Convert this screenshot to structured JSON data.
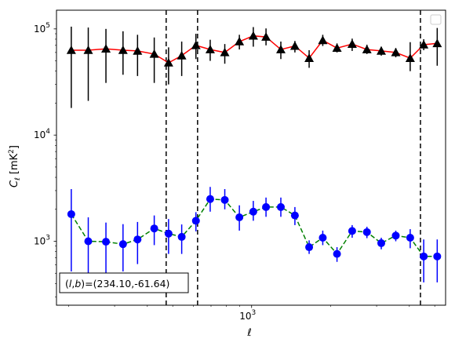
{
  "chart_data": {
    "type": "scatter",
    "x_scale": "log",
    "y_scale": "log",
    "xlabel": "ℓ",
    "ylabel": "C_ℓ  [mK²]",
    "xlim": [
      180,
      5500
    ],
    "ylim": [
      250,
      150000
    ],
    "x_tick_labels": [
      {
        "value": 1000,
        "base": "10",
        "exp": "3"
      }
    ],
    "y_tick_labels": [
      {
        "value": 1000,
        "base": "10",
        "exp": "3"
      },
      {
        "value": 10000,
        "base": "10",
        "exp": "4"
      },
      {
        "value": 100000,
        "base": "10",
        "exp": "5"
      }
    ],
    "grid": false,
    "legend": "top-right (empty)",
    "vertical_lines_x": [
      472,
      622,
      4410
    ],
    "annotation": {
      "prefix": "(",
      "l_sym": "l",
      "sep": ",",
      "b_sym": "b",
      "suffix": ")=(234.10,-61.64)"
    },
    "series": [
      {
        "color": "#ff0000",
        "marker_color": "#000000",
        "marker": "triangle",
        "line_style": "solid",
        "errorbar_color": "#000000",
        "x": [
          205,
          238,
          278,
          323,
          367,
          425,
          482,
          541,
          613,
          695,
          790,
          898,
          1015,
          1135,
          1293,
          1463,
          1658,
          1869,
          2118,
          2420,
          2755,
          3125,
          3550,
          4030,
          4538,
          5110
        ],
        "y": [
          63000,
          63000,
          65000,
          63000,
          62000,
          58000,
          48000,
          56000,
          70000,
          64000,
          60000,
          76000,
          86000,
          84000,
          64000,
          69000,
          53000,
          78000,
          66000,
          72000,
          64000,
          62000,
          60000,
          53000,
          71000,
          73000
        ],
        "y_low": [
          18000,
          21000,
          31000,
          37000,
          36000,
          31000,
          30000,
          36000,
          52000,
          50000,
          47000,
          64000,
          68000,
          70000,
          52000,
          60000,
          43000,
          69000,
          60000,
          62000,
          58000,
          56000,
          54000,
          40000,
          63000,
          45000
        ],
        "y_high": [
          105000,
          103000,
          100000,
          95000,
          88000,
          83000,
          67000,
          76000,
          90000,
          79000,
          72000,
          88000,
          104000,
          101000,
          76000,
          77000,
          63000,
          88000,
          73000,
          81000,
          71000,
          68000,
          66000,
          75000,
          80000,
          102000
        ]
      },
      {
        "color": "#008000",
        "marker_color": "#0000ff",
        "marker": "circle",
        "line_style": "dashed",
        "errorbar_color": "#0000ff",
        "x": [
          205,
          238,
          278,
          323,
          367,
          425,
          482,
          541,
          613,
          695,
          790,
          898,
          1015,
          1135,
          1293,
          1463,
          1658,
          1869,
          2118,
          2420,
          2755,
          3125,
          3550,
          4030,
          4538,
          5110
        ],
        "y": [
          1800,
          1000,
          990,
          940,
          1040,
          1320,
          1180,
          1100,
          1560,
          2500,
          2450,
          1680,
          1900,
          2100,
          2100,
          1750,
          880,
          1080,
          760,
          1250,
          1220,
          960,
          1130,
          1080,
          720,
          720
        ],
        "y_low": [
          520,
          500,
          460,
          520,
          610,
          920,
          760,
          760,
          1240,
          1900,
          2000,
          1260,
          1560,
          1700,
          1700,
          1420,
          760,
          920,
          640,
          1080,
          1070,
          840,
          1000,
          860,
          410,
          410
        ],
        "y_high": [
          3100,
          1680,
          1500,
          1450,
          1520,
          1750,
          1620,
          1440,
          1880,
          3250,
          3100,
          2180,
          2400,
          2580,
          2580,
          2100,
          1020,
          1260,
          880,
          1420,
          1370,
          1080,
          1260,
          1300,
          1040,
          1040
        ]
      }
    ]
  }
}
